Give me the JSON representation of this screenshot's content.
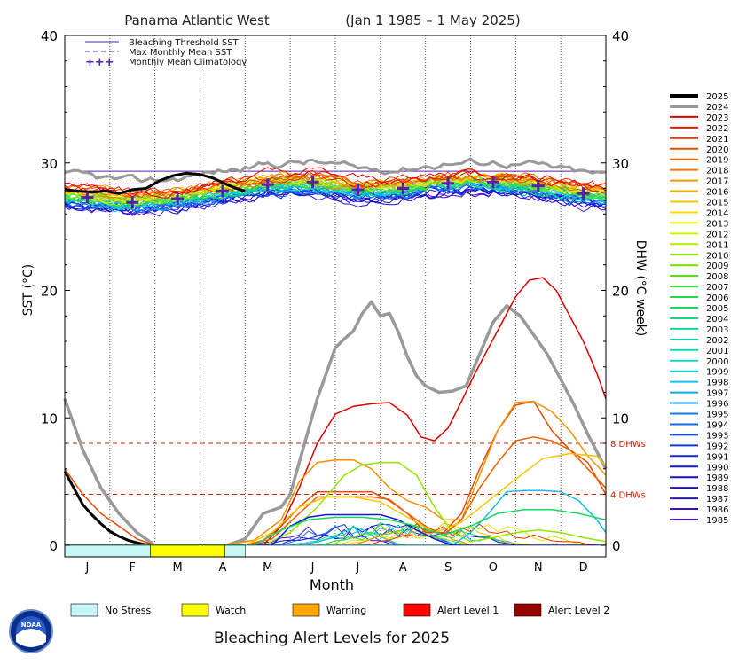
{
  "chart_data": {
    "type": "line",
    "title": "Panama Atlantic West",
    "date_range": "(Jan 1 1985 – 1 May 2025)",
    "xlabel": "Month",
    "ylabel_left": "SST (°C)",
    "ylabel_right": "DHW (°C week)",
    "months": [
      "J",
      "F",
      "M",
      "A",
      "M",
      "J",
      "J",
      "A",
      "S",
      "O",
      "N",
      "D"
    ],
    "ylim": [
      0,
      40
    ],
    "yticks": [
      0,
      10,
      20,
      30,
      40
    ],
    "bleaching_threshold_sst": 29.35,
    "max_monthly_mean_sst": 28.35,
    "climatology": [
      27.3,
      26.9,
      27.2,
      27.8,
      28.3,
      28.5,
      27.9,
      28.0,
      28.4,
      28.5,
      28.2,
      27.6
    ],
    "dhw_reference_lines": [
      {
        "value": 8,
        "label": "8 DHWs"
      },
      {
        "value": 4,
        "label": "4 DHWs"
      }
    ],
    "legend": {
      "threshold": "Bleaching Threshold SST",
      "mmm": "Max Monthly Mean SST",
      "climatology": "Monthly Mean Climatology"
    },
    "year_legend": [
      {
        "year": "2025",
        "color": "#000000"
      },
      {
        "year": "2024",
        "color": "#999999"
      },
      {
        "year": "2023",
        "color": "#dd0000"
      },
      {
        "year": "2022",
        "color": "#e21a00"
      },
      {
        "year": "2021",
        "color": "#e63300"
      },
      {
        "year": "2020",
        "color": "#ea4a00"
      },
      {
        "year": "2019",
        "color": "#ee6000"
      },
      {
        "year": "2018",
        "color": "#f07a00"
      },
      {
        "year": "2017",
        "color": "#f29400"
      },
      {
        "year": "2016",
        "color": "#f4ad00"
      },
      {
        "year": "2015",
        "color": "#f6c600"
      },
      {
        "year": "2014",
        "color": "#f8de00"
      },
      {
        "year": "2013",
        "color": "#eaf000"
      },
      {
        "year": "2012",
        "color": "#cff000"
      },
      {
        "year": "2011",
        "color": "#b2ec00"
      },
      {
        "year": "2010",
        "color": "#94e600"
      },
      {
        "year": "2009",
        "color": "#75e000"
      },
      {
        "year": "2008",
        "color": "#55dc10"
      },
      {
        "year": "2007",
        "color": "#35d830"
      },
      {
        "year": "2006",
        "color": "#20d84a"
      },
      {
        "year": "2005",
        "color": "#15d860"
      },
      {
        "year": "2004",
        "color": "#10d878"
      },
      {
        "year": "2003",
        "color": "#10d890"
      },
      {
        "year": "2002",
        "color": "#10d8a6"
      },
      {
        "year": "2001",
        "color": "#10d8bc"
      },
      {
        "year": "2000",
        "color": "#10d8d0"
      },
      {
        "year": "1999",
        "color": "#10d0e0"
      },
      {
        "year": "1998",
        "color": "#10c0ea"
      },
      {
        "year": "1997",
        "color": "#10aaee"
      },
      {
        "year": "1996",
        "color": "#1094f0"
      },
      {
        "year": "1995",
        "color": "#107cf0"
      },
      {
        "year": "1994",
        "color": "#1066ee"
      },
      {
        "year": "1993",
        "color": "#1050e8"
      },
      {
        "year": "1992",
        "color": "#103ae0"
      },
      {
        "year": "1991",
        "color": "#1028d8"
      },
      {
        "year": "1990",
        "color": "#1018d0"
      },
      {
        "year": "1989",
        "color": "#1010c8"
      },
      {
        "year": "1988",
        "color": "#1a10c4"
      },
      {
        "year": "1987",
        "color": "#2810c8"
      },
      {
        "year": "1986",
        "color": "#3810cc"
      },
      {
        "year": "1985",
        "color": "#4a10d0"
      }
    ],
    "highlight_dhw": [
      {
        "year": "2024",
        "color": "#999999",
        "width": 3.5,
        "x": [
          0,
          0.4,
          0.8,
          1.2,
          1.6,
          2.0,
          2.4,
          2.8,
          3.2,
          3.6,
          4.0,
          4.4,
          4.8,
          5.0,
          5.2,
          5.4,
          5.6,
          5.8,
          6.0,
          6.2,
          6.4,
          6.6,
          6.8,
          7.0,
          7.2,
          7.4,
          7.6,
          7.8,
          8.0,
          8.3,
          8.6,
          8.9,
          9.2,
          9.5,
          9.8,
          10.1,
          10.4,
          10.7,
          11.0,
          11.3,
          11.6,
          12.0
        ],
        "y": [
          11.5,
          7.5,
          4.5,
          2.5,
          1,
          0,
          0,
          0,
          0,
          0,
          0.5,
          2.5,
          3.0,
          4.0,
          6.5,
          9,
          11.5,
          13.5,
          15.5,
          16.2,
          16.8,
          18.2,
          19.1,
          18.0,
          18.2,
          16.7,
          14.8,
          13.3,
          12.5,
          12.0,
          12.1,
          12.5,
          15.0,
          17.5,
          18.8,
          18.0,
          16.5,
          15.0,
          13.0,
          11.0,
          8.7,
          6.0
        ]
      },
      {
        "year": "2025",
        "color": "#000000",
        "width": 3,
        "x": [
          0,
          0.2,
          0.4,
          0.6,
          0.8,
          1.0,
          1.2,
          1.4,
          1.6,
          1.8,
          2.0
        ],
        "y": [
          5.8,
          4.5,
          3.2,
          2.4,
          1.7,
          1.1,
          0.7,
          0.4,
          0.2,
          0.05,
          0
        ]
      },
      {
        "year": "2023",
        "color": "#dd0000",
        "width": 1.5,
        "x": [
          0,
          3.0,
          4.4,
          4.8,
          5.2,
          5.6,
          6.0,
          6.4,
          6.8,
          7.2,
          7.6,
          7.9,
          8.2,
          8.5,
          8.8,
          9.1,
          9.4,
          9.7,
          10.0,
          10.3,
          10.6,
          10.9,
          11.2,
          11.5,
          11.8,
          12.0
        ],
        "y": [
          0,
          0,
          0,
          1.5,
          4.5,
          8.0,
          10.3,
          10.9,
          11.1,
          11.2,
          10.2,
          8.5,
          8.2,
          9.2,
          11.3,
          13.5,
          15.5,
          17.5,
          19.5,
          20.8,
          21.0,
          20.0,
          18.0,
          16.0,
          13.5,
          11.5
        ]
      },
      {
        "year": "2020",
        "color": "#ea4a00",
        "width": 1.5,
        "x": [
          0,
          0.4,
          0.8,
          1.2,
          1.6,
          2.0,
          4.0,
          4.4,
          4.8,
          5.2,
          5.6,
          6.0,
          6.4,
          6.8,
          7.2,
          7.6,
          8.0,
          8.4,
          8.8,
          9.2,
          9.6,
          10.0,
          10.4,
          10.8,
          11.2,
          11.6,
          12.0
        ],
        "y": [
          6.0,
          4.0,
          2.5,
          1.5,
          0.5,
          0,
          0,
          0.4,
          1.5,
          3.0,
          4.2,
          4.2,
          4.2,
          4.2,
          3.5,
          2.5,
          1.0,
          1.0,
          2.5,
          6.0,
          9.0,
          11.0,
          11.3,
          9.0,
          7.5,
          6.5,
          4.0
        ]
      },
      {
        "year": "2017",
        "color": "#f29400",
        "width": 1.5,
        "x": [
          0,
          3.5,
          4.2,
          4.8,
          5.2,
          5.6,
          6.0,
          6.4,
          6.8,
          7.2,
          7.6,
          8.0,
          8.4,
          8.8,
          9.2,
          9.6,
          10.0,
          10.4,
          10.8,
          11.2,
          11.6,
          12.0
        ],
        "y": [
          0,
          0,
          0.4,
          2.0,
          5.0,
          6.5,
          6.7,
          6.7,
          6.0,
          4.5,
          3.5,
          3.0,
          2.0,
          2.0,
          5.5,
          9.0,
          11.2,
          11.3,
          10.5,
          9.0,
          7.0,
          5.5
        ]
      },
      {
        "year": "2010",
        "color": "#94e600",
        "width": 1.5,
        "x": [
          0,
          4.4,
          5.0,
          5.6,
          6.2,
          6.6,
          7.0,
          7.4,
          7.8,
          8.2,
          8.6,
          9.0,
          9.5,
          10.0,
          10.5,
          11.0,
          11.5,
          12.0
        ],
        "y": [
          0,
          0,
          1.0,
          3.0,
          5.5,
          6.3,
          6.5,
          6.5,
          5.5,
          3.0,
          1.0,
          0.3,
          0.6,
          1.0,
          1.2,
          1.0,
          0.6,
          0.3
        ]
      },
      {
        "year": "2019",
        "color": "#ee6000",
        "width": 1.5,
        "x": [
          0,
          4.0,
          4.6,
          5.2,
          5.6,
          6.0,
          6.4,
          6.8,
          7.2,
          7.6,
          8.0,
          8.4,
          8.8,
          9.2,
          9.6,
          10.0,
          10.4,
          10.8,
          11.2,
          11.6,
          12.0
        ],
        "y": [
          0,
          0,
          0.5,
          2.5,
          3.8,
          3.8,
          3.8,
          3.8,
          3.6,
          2.5,
          1.5,
          0.8,
          2.0,
          4.5,
          6.5,
          8.2,
          8.5,
          8.2,
          7.5,
          6.0,
          4.5
        ]
      },
      {
        "year": "1998",
        "color": "#10c0ea",
        "width": 1.5,
        "x": [
          0,
          8.6,
          9.0,
          9.4,
          9.8,
          10.2,
          10.6,
          11.0,
          11.4,
          11.8,
          12.0
        ],
        "y": [
          0,
          0,
          1.0,
          2.5,
          4.2,
          4.3,
          4.3,
          4.2,
          3.5,
          2.0,
          1.0
        ]
      },
      {
        "year": "1988",
        "color": "#1018d0",
        "width": 1.5,
        "x": [
          0,
          4.6,
          5.0,
          5.4,
          5.8,
          6.2,
          6.6,
          7.0,
          7.4,
          7.8,
          8.2,
          8.6,
          12.0
        ],
        "y": [
          0,
          0,
          1.5,
          2.2,
          2.4,
          2.4,
          2.4,
          2.4,
          2.0,
          1.2,
          0.5,
          0,
          0
        ]
      },
      {
        "year": "2015",
        "color": "#f6c600",
        "width": 1.5,
        "x": [
          0,
          4.0,
          4.6,
          5.2,
          5.8,
          6.4,
          7.0,
          7.6,
          8.2,
          8.8,
          9.4,
          10.0,
          10.6,
          11.2,
          11.8,
          12.0
        ],
        "y": [
          0,
          0,
          1.0,
          3.0,
          3.8,
          3.8,
          3.4,
          2.2,
          1.0,
          1.8,
          3.5,
          5.2,
          6.8,
          7.2,
          7.0,
          6.2
        ]
      },
      {
        "year": "2005",
        "color": "#15d860",
        "width": 1.5,
        "x": [
          0,
          4.2,
          4.8,
          5.4,
          6.0,
          6.6,
          7.2,
          7.8,
          8.4,
          9.0,
          9.6,
          10.2,
          10.8,
          11.4,
          12.0
        ],
        "y": [
          0,
          0,
          1.2,
          2.0,
          2.2,
          2.2,
          2.0,
          1.5,
          0.8,
          1.5,
          2.5,
          2.8,
          2.8,
          2.5,
          2.0
        ]
      }
    ],
    "alert_bar": {
      "title": "Bleaching Alert Levels for 2025",
      "levels": [
        {
          "label": "No Stress",
          "color": "#c6f6f6"
        },
        {
          "label": "Watch",
          "color": "#ffff00"
        },
        {
          "label": "Warning",
          "color": "#ffaa00"
        },
        {
          "label": "Alert Level 1",
          "color": "#ff0000"
        },
        {
          "label": "Alert Level 2",
          "color": "#990000"
        }
      ],
      "segments": [
        {
          "start": 0,
          "end": 1.9,
          "level": 0
        },
        {
          "start": 1.9,
          "end": 3.55,
          "level": 1
        },
        {
          "start": 3.55,
          "end": 4.0,
          "level": 0
        }
      ]
    },
    "logo_text": "NOAA"
  }
}
